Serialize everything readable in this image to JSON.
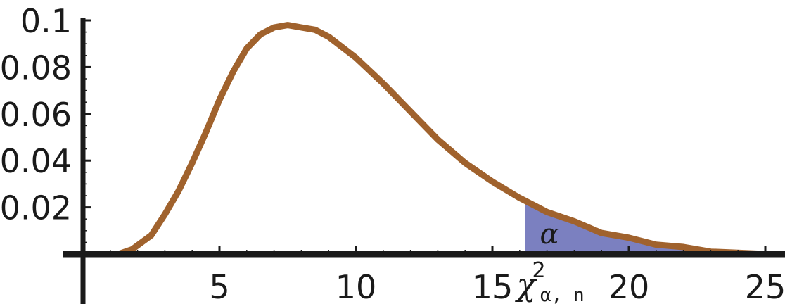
{
  "chart_data": {
    "type": "area",
    "title": "",
    "xlabel": "",
    "ylabel": "",
    "xlim": [
      0,
      25.5
    ],
    "ylim": [
      0,
      0.1
    ],
    "x_ticks": [
      5,
      10,
      15,
      20,
      25
    ],
    "x_tick_labels": [
      "5",
      "10",
      "15",
      "20",
      "25"
    ],
    "y_ticks": [
      0.02,
      0.04,
      0.06,
      0.08,
      0.1
    ],
    "y_tick_labels": [
      "0.02",
      "0.04",
      "0.06",
      "0.08",
      "0.1"
    ],
    "grid": false,
    "series": [
      {
        "x": [
          1.3,
          1.8,
          2.5,
          3,
          3.5,
          4,
          4.5,
          5,
          5.5,
          6,
          6.5,
          7,
          7.5,
          8,
          8.5,
          9,
          10,
          11,
          12,
          13,
          14,
          15,
          16,
          17,
          18,
          19,
          20,
          21,
          22,
          23,
          24,
          25
        ],
        "y": [
          0,
          0.002,
          0.008,
          0.017,
          0.027,
          0.039,
          0.052,
          0.066,
          0.078,
          0.088,
          0.094,
          0.097,
          0.098,
          0.097,
          0.096,
          0.093,
          0.084,
          0.073,
          0.061,
          0.049,
          0.039,
          0.031,
          0.024,
          0.018,
          0.014,
          0.009,
          0.007,
          0.004,
          0.003,
          0.001,
          0.0005,
          0
        ]
      }
    ],
    "shaded_region": {
      "x_start": 16.2,
      "x_end": 25,
      "label": "α"
    },
    "critical_value_label": {
      "base": "χ",
      "superscript": "2",
      "subscript": "α, n"
    },
    "colors": {
      "curve": "#A0622D",
      "shade": "#7B80C0",
      "axes": "#1a1a1a"
    }
  }
}
